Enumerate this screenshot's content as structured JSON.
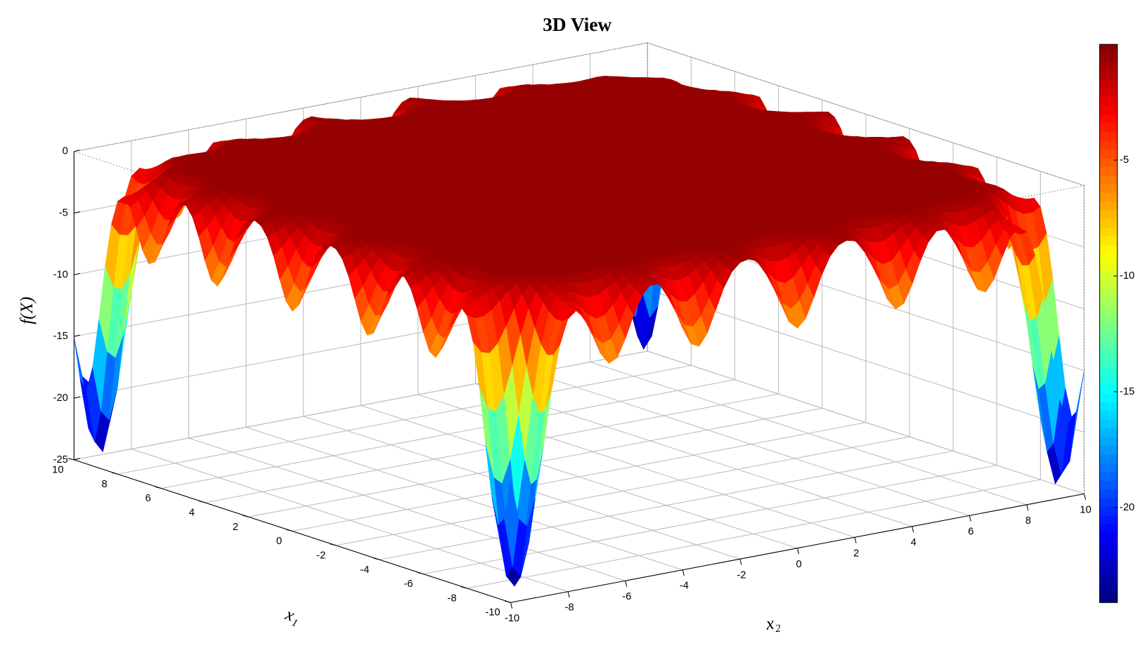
{
  "chart_data": {
    "type": "surface",
    "title": "3D View",
    "xlabel": "x₁",
    "ylabel": "x₂",
    "zlabel": "f(X)",
    "xlim": [
      -10,
      10
    ],
    "xticks": [
      -10,
      -8,
      -6,
      -4,
      -2,
      0,
      2,
      4,
      6,
      8,
      10
    ],
    "ylim": [
      -10,
      10
    ],
    "yticks": [
      -10,
      -8,
      -6,
      -4,
      -2,
      0,
      2,
      4,
      6,
      8,
      10
    ],
    "zlim": [
      -25,
      0
    ],
    "zticks": [
      -25,
      -20,
      -15,
      -10,
      -5,
      0
    ],
    "colormap": "jet",
    "clim": [
      -24.1,
      0
    ],
    "cticks": [
      -20,
      -15,
      -10,
      -5
    ],
    "grid": true
  }
}
